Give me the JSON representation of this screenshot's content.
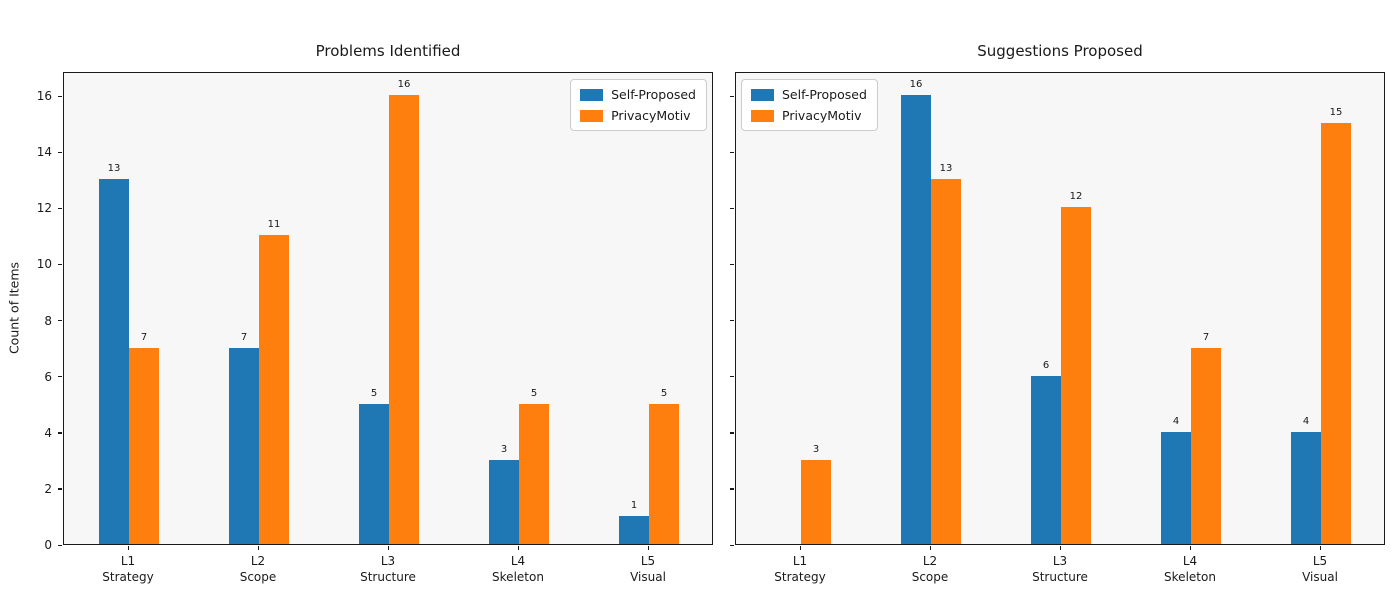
{
  "figure": {
    "background": "#ffffff",
    "axes_background": "#f7f7f7",
    "spine_color": "#1a1a1a",
    "text_color": "#1a1a1a"
  },
  "ylabel": "Count of Items",
  "yticks": [
    0,
    2,
    4,
    6,
    8,
    10,
    12,
    14,
    16
  ],
  "series_colors": {
    "self_proposed": "#1f77b4",
    "privacymotiv": "#ff7f0e"
  },
  "chart_data": [
    {
      "type": "bar",
      "title": "Problems Identified",
      "categories": [
        {
          "line1": "L1",
          "line2": "Strategy"
        },
        {
          "line1": "L2",
          "line2": "Scope"
        },
        {
          "line1": "L3",
          "line2": "Structure"
        },
        {
          "line1": "L4",
          "line2": "Skeleton"
        },
        {
          "line1": "L5",
          "line2": "Visual"
        }
      ],
      "series": [
        {
          "name": "Self-Proposed",
          "color": "#1f77b4",
          "values": [
            13,
            7,
            5,
            3,
            1
          ]
        },
        {
          "name": "PrivacyMotiv",
          "color": "#ff7f0e",
          "values": [
            7,
            11,
            16,
            5,
            5
          ]
        }
      ],
      "ylabel": "Count of Items",
      "ylim": [
        0,
        16.86
      ],
      "grid": false,
      "show_ytick_labels": true,
      "legend_position": "top-right"
    },
    {
      "type": "bar",
      "title": "Suggestions Proposed",
      "categories": [
        {
          "line1": "L1",
          "line2": "Strategy"
        },
        {
          "line1": "L2",
          "line2": "Scope"
        },
        {
          "line1": "L3",
          "line2": "Structure"
        },
        {
          "line1": "L4",
          "line2": "Skeleton"
        },
        {
          "line1": "L5",
          "line2": "Visual"
        }
      ],
      "series": [
        {
          "name": "Self-Proposed",
          "color": "#1f77b4",
          "values": [
            0,
            16,
            6,
            4,
            4
          ]
        },
        {
          "name": "PrivacyMotiv",
          "color": "#ff7f0e",
          "values": [
            3,
            13,
            12,
            7,
            15
          ]
        }
      ],
      "ylabel": "",
      "ylim": [
        0,
        16.86
      ],
      "grid": false,
      "show_ytick_labels": false,
      "legend_position": "top-left"
    }
  ]
}
